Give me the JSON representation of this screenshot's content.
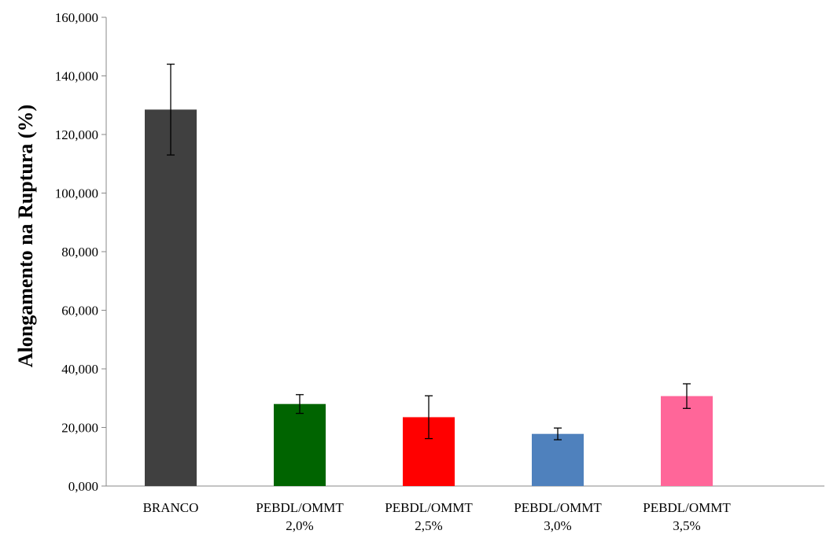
{
  "chart_data": {
    "type": "bar",
    "title": "",
    "xlabel": "",
    "ylabel": "Alongamento  na Ruptura (%)",
    "ylim": [
      0,
      160
    ],
    "yticks": [
      0,
      20,
      40,
      60,
      80,
      100,
      120,
      140,
      160
    ],
    "ytick_labels": [
      "0,000",
      "20,000",
      "40,000",
      "60,000",
      "80,000",
      "100,000",
      "120,000",
      "140,000",
      "160,000"
    ],
    "categories": [
      [
        "BRANCO"
      ],
      [
        "PEBDL/OMMT",
        "2,0%"
      ],
      [
        "PEBDL/OMMT",
        "2,5%"
      ],
      [
        "PEBDL/OMMT",
        "3,0%"
      ],
      [
        "PEBDL/OMMT",
        "3,5%"
      ]
    ],
    "values": [
      128.5,
      28.0,
      23.5,
      17.8,
      30.7
    ],
    "error": [
      15.5,
      3.2,
      7.3,
      2.0,
      4.2
    ],
    "colors": [
      "#404040",
      "#006400",
      "#ff0000",
      "#4f81bd",
      "#ff6699"
    ],
    "grid": false,
    "legend": "none"
  }
}
